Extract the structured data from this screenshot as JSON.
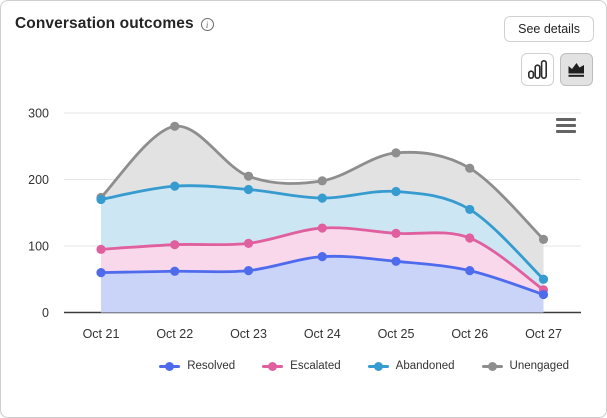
{
  "header": {
    "title": "Conversation outcomes",
    "info_icon_glyph": "i",
    "see_details_label": "See details"
  },
  "toolbar": {
    "selected_view": "area",
    "views": [
      "bar",
      "area"
    ]
  },
  "chart_data": {
    "type": "area",
    "title": "Conversation outcomes",
    "categories": [
      "Oct 21",
      "Oct 22",
      "Oct 23",
      "Oct 24",
      "Oct 25",
      "Oct 26",
      "Oct 27"
    ],
    "series": [
      {
        "name": "Unengaged",
        "color": "#8e8e8e",
        "fill": "#e2e2e2",
        "values": [
          173,
          280,
          205,
          198,
          240,
          217,
          110
        ]
      },
      {
        "name": "Abandoned",
        "color": "#369bce",
        "fill": "#cde6f3",
        "values": [
          170,
          190,
          185,
          172,
          182,
          155,
          50
        ]
      },
      {
        "name": "Escalated",
        "color": "#e0609f",
        "fill": "#f8d8ea",
        "values": [
          95,
          102,
          104,
          127,
          119,
          112,
          34
        ]
      },
      {
        "name": "Resolved",
        "color": "#4f6bed",
        "fill": "#c9d4f8",
        "values": [
          60,
          62,
          63,
          84,
          77,
          63,
          27
        ]
      }
    ],
    "legend_order": [
      "Resolved",
      "Escalated",
      "Abandoned",
      "Unengaged"
    ],
    "xlabel": "",
    "ylabel": "",
    "ylim": [
      0,
      300
    ],
    "yticks": [
      0,
      100,
      200,
      300
    ],
    "grid": true,
    "legend_position": "bottom",
    "marker": "circle",
    "line_smoothing": "spline"
  }
}
